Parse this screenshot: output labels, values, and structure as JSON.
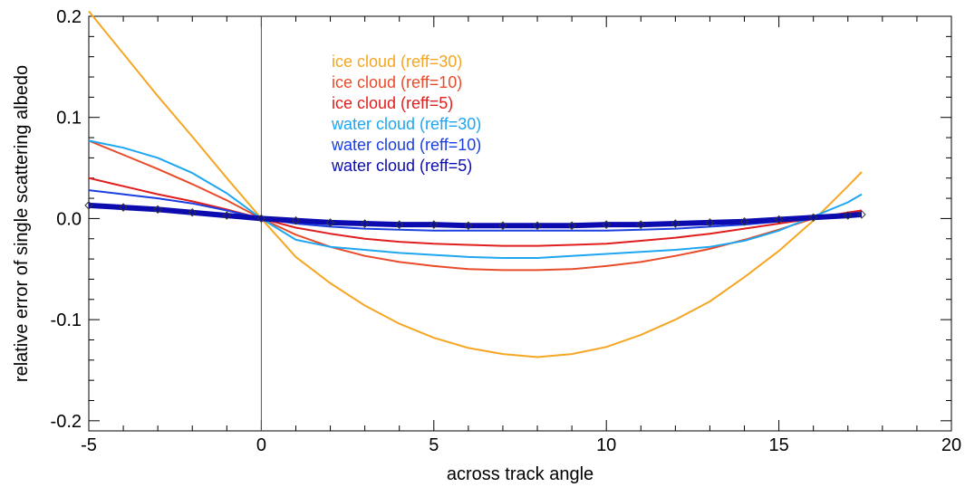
{
  "chart_data": {
    "type": "line",
    "title": "",
    "xlabel": "across track angle",
    "ylabel": "relative error of single scattering albedo",
    "xlim": [
      -5,
      20
    ],
    "ylim": [
      -0.21,
      0.2
    ],
    "x_ticks": [
      -5,
      0,
      5,
      10,
      15,
      20
    ],
    "x_tick_labels": [
      "-5",
      "0",
      "5",
      "10",
      "15",
      "20"
    ],
    "y_ticks": [
      -0.2,
      -0.1,
      0.0,
      0.1,
      0.2
    ],
    "y_tick_labels": [
      "-0.2",
      "-0.1",
      "0.0",
      "0.1",
      "0.2"
    ],
    "reference_line_x": 0,
    "grid": false,
    "legend_position": "top-center",
    "series": [
      {
        "name": "ice cloud (reff=30)",
        "color": "#f5a623",
        "x": [
          -5,
          -4,
          -3,
          -2,
          -1,
          0,
          1,
          2,
          3,
          4,
          5,
          6,
          7,
          8,
          9,
          10,
          11,
          12,
          13,
          14,
          15,
          16,
          17,
          17.4
        ],
        "y": [
          0.205,
          0.163,
          0.121,
          0.081,
          0.04,
          0.0,
          -0.038,
          -0.064,
          -0.086,
          -0.104,
          -0.118,
          -0.128,
          -0.134,
          -0.137,
          -0.134,
          -0.127,
          -0.115,
          -0.1,
          -0.082,
          -0.058,
          -0.032,
          -0.002,
          0.032,
          0.046
        ]
      },
      {
        "name": "ice cloud (reff=10)",
        "color": "#e84c2a",
        "x": [
          -5,
          -4,
          -3,
          -2,
          -1,
          0,
          1,
          2,
          3,
          4,
          5,
          6,
          7,
          8,
          9,
          10,
          11,
          12,
          13,
          14,
          15,
          16,
          17,
          17.4
        ],
        "y": [
          0.077,
          0.063,
          0.049,
          0.034,
          0.018,
          0.0,
          -0.016,
          -0.028,
          -0.037,
          -0.043,
          -0.047,
          -0.05,
          -0.051,
          -0.051,
          -0.05,
          -0.047,
          -0.043,
          -0.037,
          -0.03,
          -0.021,
          -0.011,
          0.0,
          0.005,
          0.008
        ]
      },
      {
        "name": "ice cloud (reff=5)",
        "color": "#e01e1e",
        "x": [
          -5,
          -4,
          -3,
          -2,
          -1,
          0,
          1,
          2,
          3,
          4,
          5,
          6,
          7,
          8,
          9,
          10,
          11,
          12,
          13,
          14,
          15,
          16,
          17,
          17.4
        ],
        "y": [
          0.04,
          0.032,
          0.024,
          0.017,
          0.009,
          0.0,
          -0.009,
          -0.015,
          -0.02,
          -0.023,
          -0.025,
          -0.026,
          -0.027,
          -0.027,
          -0.026,
          -0.025,
          -0.022,
          -0.019,
          -0.015,
          -0.01,
          -0.005,
          0.0,
          0.006,
          0.008
        ]
      },
      {
        "name": "water cloud (reff=30)",
        "color": "#1ea6f0",
        "x": [
          -5,
          -4,
          -3,
          -2,
          -1,
          0,
          1,
          2,
          3,
          4,
          5,
          6,
          7,
          8,
          9,
          10,
          11,
          12,
          13,
          14,
          15,
          16,
          17,
          17.4
        ],
        "y": [
          0.077,
          0.07,
          0.06,
          0.045,
          0.025,
          0.0,
          -0.021,
          -0.028,
          -0.031,
          -0.034,
          -0.036,
          -0.038,
          -0.039,
          -0.039,
          -0.037,
          -0.035,
          -0.033,
          -0.031,
          -0.028,
          -0.022,
          -0.012,
          0.002,
          0.016,
          0.024
        ]
      },
      {
        "name": "water cloud (reff=10)",
        "color": "#1a3fe0",
        "x": [
          -5,
          -4,
          -3,
          -2,
          -1,
          0,
          1,
          2,
          3,
          4,
          5,
          6,
          7,
          8,
          9,
          10,
          11,
          12,
          13,
          14,
          15,
          16,
          17,
          17.4
        ],
        "y": [
          0.028,
          0.024,
          0.02,
          0.015,
          0.008,
          0.0,
          -0.005,
          -0.008,
          -0.01,
          -0.011,
          -0.012,
          -0.012,
          -0.012,
          -0.012,
          -0.012,
          -0.012,
          -0.011,
          -0.01,
          -0.008,
          -0.006,
          -0.003,
          0.001,
          0.004,
          0.005
        ]
      },
      {
        "name": "water cloud (reff=5)",
        "color": "#0b0bb0",
        "markers": "diamond",
        "x": [
          -5,
          -4,
          -3,
          -2,
          -1,
          0,
          1,
          2,
          3,
          4,
          5,
          6,
          7,
          8,
          9,
          10,
          11,
          12,
          13,
          14,
          15,
          16,
          17,
          17.4
        ],
        "y": [
          0.013,
          0.011,
          0.009,
          0.006,
          0.003,
          0.0,
          -0.002,
          -0.004,
          -0.005,
          -0.006,
          -0.006,
          -0.007,
          -0.007,
          -0.007,
          -0.007,
          -0.006,
          -0.006,
          -0.005,
          -0.004,
          -0.003,
          -0.001,
          0.001,
          0.003,
          0.004
        ]
      }
    ]
  }
}
